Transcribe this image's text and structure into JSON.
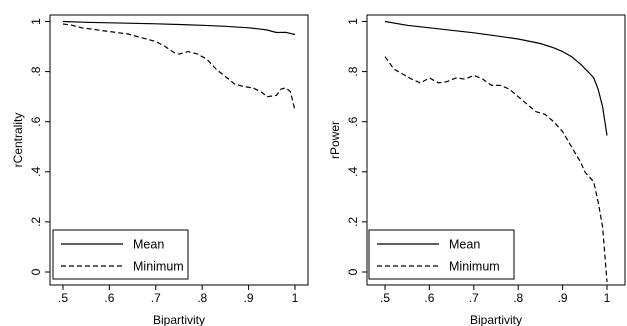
{
  "chart_data": [
    {
      "type": "line",
      "title": "",
      "xlabel": "Bipartivity",
      "ylabel": "rCentrality",
      "xlim": [
        0.5,
        1.0
      ],
      "ylim": [
        0,
        1
      ],
      "xticks": [
        ".5",
        ".6",
        ".7",
        ".8",
        ".9",
        "1"
      ],
      "yticks": [
        "0",
        ".2",
        ".4",
        ".6",
        ".8",
        "1"
      ],
      "grid": false,
      "legend_position": "bottom-left",
      "series": [
        {
          "name": "Mean",
          "style": "solid",
          "x": [
            0.5,
            0.55,
            0.6,
            0.65,
            0.7,
            0.75,
            0.8,
            0.85,
            0.9,
            0.92,
            0.94,
            0.96,
            0.98,
            1.0
          ],
          "y": [
            1.0,
            0.997,
            0.995,
            0.993,
            0.991,
            0.988,
            0.985,
            0.981,
            0.975,
            0.971,
            0.966,
            0.956,
            0.957,
            0.948
          ]
        },
        {
          "name": "Minimum",
          "style": "dashed",
          "x": [
            0.5,
            0.52,
            0.54,
            0.56,
            0.58,
            0.6,
            0.62,
            0.64,
            0.66,
            0.68,
            0.7,
            0.72,
            0.74,
            0.75,
            0.77,
            0.79,
            0.81,
            0.83,
            0.85,
            0.87,
            0.89,
            0.91,
            0.93,
            0.94,
            0.96,
            0.97,
            0.98,
            0.99,
            1.0
          ],
          "y": [
            0.99,
            0.985,
            0.975,
            0.97,
            0.965,
            0.96,
            0.955,
            0.95,
            0.94,
            0.93,
            0.92,
            0.9,
            0.875,
            0.87,
            0.88,
            0.87,
            0.85,
            0.81,
            0.78,
            0.75,
            0.74,
            0.735,
            0.715,
            0.7,
            0.705,
            0.73,
            0.735,
            0.72,
            0.645
          ]
        }
      ]
    },
    {
      "type": "line",
      "title": "",
      "xlabel": "Bipartivity",
      "ylabel": "rPower",
      "xlim": [
        0.5,
        1.0
      ],
      "ylim": [
        0,
        1
      ],
      "xticks": [
        ".5",
        ".6",
        ".7",
        ".8",
        ".9",
        "1"
      ],
      "yticks": [
        "0",
        ".2",
        ".4",
        ".6",
        ".8",
        "1"
      ],
      "grid": false,
      "legend_position": "bottom-left",
      "series": [
        {
          "name": "Mean",
          "style": "solid",
          "x": [
            0.5,
            0.55,
            0.6,
            0.65,
            0.7,
            0.75,
            0.8,
            0.85,
            0.88,
            0.9,
            0.92,
            0.94,
            0.96,
            0.97,
            0.98,
            0.99,
            1.0
          ],
          "y": [
            1.0,
            0.985,
            0.975,
            0.965,
            0.955,
            0.943,
            0.93,
            0.912,
            0.895,
            0.88,
            0.86,
            0.83,
            0.795,
            0.775,
            0.73,
            0.66,
            0.545
          ]
        },
        {
          "name": "Minimum",
          "style": "dashed",
          "x": [
            0.5,
            0.52,
            0.54,
            0.56,
            0.58,
            0.6,
            0.62,
            0.64,
            0.66,
            0.68,
            0.7,
            0.72,
            0.74,
            0.76,
            0.78,
            0.8,
            0.82,
            0.84,
            0.86,
            0.88,
            0.9,
            0.92,
            0.94,
            0.95,
            0.96,
            0.97,
            0.98,
            0.99,
            1.0
          ],
          "y": [
            0.86,
            0.81,
            0.79,
            0.77,
            0.755,
            0.775,
            0.755,
            0.76,
            0.775,
            0.77,
            0.785,
            0.77,
            0.745,
            0.745,
            0.73,
            0.7,
            0.67,
            0.64,
            0.63,
            0.6,
            0.56,
            0.5,
            0.44,
            0.4,
            0.38,
            0.36,
            0.28,
            0.18,
            -0.04
          ]
        }
      ]
    }
  ]
}
